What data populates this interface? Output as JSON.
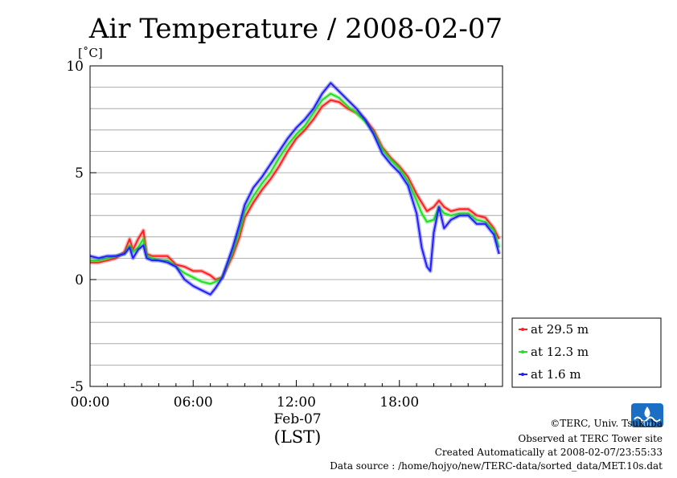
{
  "chart_data": {
    "type": "line",
    "title": "Air Temperature / 2008-02-07",
    "ylabel": "[˚C]",
    "xlabel": "Feb-07",
    "xlabel2": "(LST)",
    "x_unit": "hour",
    "xlim": [
      0,
      24
    ],
    "ylim": [
      -5,
      10
    ],
    "y_ticks": [
      -5,
      0,
      5,
      10
    ],
    "x_ticks": [
      {
        "v": 0,
        "label": "00:00"
      },
      {
        "v": 6,
        "label": "06:00"
      },
      {
        "v": 12,
        "label": "12:00"
      },
      {
        "v": 18,
        "label": "18:00"
      }
    ],
    "grid": true,
    "legend_position": "right-bottom",
    "series": [
      {
        "name": "at 29.5 m",
        "color": "#ff2020",
        "points": [
          [
            0,
            0.8
          ],
          [
            0.5,
            0.8
          ],
          [
            1,
            0.9
          ],
          [
            1.5,
            1.0
          ],
          [
            2,
            1.3
          ],
          [
            2.3,
            1.9
          ],
          [
            2.5,
            1.4
          ],
          [
            2.8,
            1.9
          ],
          [
            3.1,
            2.3
          ],
          [
            3.3,
            1.2
          ],
          [
            3.6,
            1.1
          ],
          [
            4,
            1.1
          ],
          [
            4.5,
            1.1
          ],
          [
            5,
            0.7
          ],
          [
            5.5,
            0.6
          ],
          [
            6,
            0.4
          ],
          [
            6.5,
            0.4
          ],
          [
            7,
            0.2
          ],
          [
            7.3,
            0.0
          ],
          [
            7.7,
            0.1
          ],
          [
            8,
            0.6
          ],
          [
            8.3,
            1.1
          ],
          [
            8.7,
            2.0
          ],
          [
            9,
            2.9
          ],
          [
            9.5,
            3.6
          ],
          [
            10,
            4.2
          ],
          [
            10.5,
            4.7
          ],
          [
            11,
            5.3
          ],
          [
            11.5,
            6.0
          ],
          [
            12,
            6.6
          ],
          [
            12.5,
            7.0
          ],
          [
            13,
            7.5
          ],
          [
            13.5,
            8.1
          ],
          [
            14,
            8.4
          ],
          [
            14.5,
            8.3
          ],
          [
            15,
            8.0
          ],
          [
            15.5,
            7.8
          ],
          [
            16,
            7.5
          ],
          [
            16.5,
            7.0
          ],
          [
            17,
            6.2
          ],
          [
            17.5,
            5.7
          ],
          [
            18,
            5.3
          ],
          [
            18.5,
            4.8
          ],
          [
            19,
            4.0
          ],
          [
            19.3,
            3.6
          ],
          [
            19.6,
            3.2
          ],
          [
            20,
            3.4
          ],
          [
            20.3,
            3.7
          ],
          [
            20.6,
            3.4
          ],
          [
            21,
            3.2
          ],
          [
            21.5,
            3.3
          ],
          [
            22,
            3.3
          ],
          [
            22.5,
            3.0
          ],
          [
            23,
            2.9
          ],
          [
            23.5,
            2.4
          ],
          [
            23.8,
            1.9
          ]
        ]
      },
      {
        "name": "at 12.3 m",
        "color": "#20e020",
        "points": [
          [
            0,
            0.9
          ],
          [
            0.5,
            0.9
          ],
          [
            1,
            1.0
          ],
          [
            1.5,
            1.1
          ],
          [
            2,
            1.2
          ],
          [
            2.3,
            1.6
          ],
          [
            2.5,
            1.3
          ],
          [
            2.8,
            1.5
          ],
          [
            3.1,
            1.9
          ],
          [
            3.3,
            1.1
          ],
          [
            3.6,
            1.0
          ],
          [
            4,
            0.9
          ],
          [
            4.5,
            0.9
          ],
          [
            5,
            0.6
          ],
          [
            5.5,
            0.3
          ],
          [
            6,
            0.1
          ],
          [
            6.5,
            -0.1
          ],
          [
            7,
            -0.2
          ],
          [
            7.3,
            -0.1
          ],
          [
            7.7,
            0.1
          ],
          [
            8,
            0.7
          ],
          [
            8.3,
            1.3
          ],
          [
            8.7,
            2.3
          ],
          [
            9,
            3.2
          ],
          [
            9.5,
            3.9
          ],
          [
            10,
            4.5
          ],
          [
            10.5,
            5.0
          ],
          [
            11,
            5.7
          ],
          [
            11.5,
            6.3
          ],
          [
            12,
            6.8
          ],
          [
            12.5,
            7.2
          ],
          [
            13,
            7.8
          ],
          [
            13.5,
            8.4
          ],
          [
            14,
            8.7
          ],
          [
            14.5,
            8.5
          ],
          [
            15,
            8.1
          ],
          [
            15.5,
            7.8
          ],
          [
            16,
            7.4
          ],
          [
            16.5,
            6.9
          ],
          [
            17,
            6.1
          ],
          [
            17.5,
            5.6
          ],
          [
            18,
            5.2
          ],
          [
            18.5,
            4.6
          ],
          [
            19,
            3.7
          ],
          [
            19.3,
            3.1
          ],
          [
            19.6,
            2.7
          ],
          [
            20,
            2.8
          ],
          [
            20.3,
            3.4
          ],
          [
            20.6,
            3.1
          ],
          [
            21,
            3.0
          ],
          [
            21.5,
            3.1
          ],
          [
            22,
            3.1
          ],
          [
            22.5,
            2.8
          ],
          [
            23,
            2.7
          ],
          [
            23.5,
            2.3
          ],
          [
            23.8,
            1.5
          ]
        ]
      },
      {
        "name": "at 1.6 m",
        "color": "#2020ff",
        "points": [
          [
            0,
            1.1
          ],
          [
            0.5,
            1.0
          ],
          [
            1,
            1.1
          ],
          [
            1.5,
            1.1
          ],
          [
            2,
            1.2
          ],
          [
            2.3,
            1.5
          ],
          [
            2.5,
            1.0
          ],
          [
            2.8,
            1.4
          ],
          [
            3.1,
            1.6
          ],
          [
            3.3,
            1.0
          ],
          [
            3.6,
            0.9
          ],
          [
            4,
            0.9
          ],
          [
            4.5,
            0.8
          ],
          [
            5,
            0.6
          ],
          [
            5.5,
            0.0
          ],
          [
            6,
            -0.3
          ],
          [
            6.5,
            -0.5
          ],
          [
            7,
            -0.7
          ],
          [
            7.3,
            -0.4
          ],
          [
            7.7,
            0.1
          ],
          [
            8,
            0.8
          ],
          [
            8.3,
            1.5
          ],
          [
            8.7,
            2.6
          ],
          [
            9,
            3.5
          ],
          [
            9.5,
            4.3
          ],
          [
            10,
            4.8
          ],
          [
            10.5,
            5.4
          ],
          [
            11,
            6.0
          ],
          [
            11.5,
            6.6
          ],
          [
            12,
            7.1
          ],
          [
            12.5,
            7.5
          ],
          [
            13,
            8.0
          ],
          [
            13.5,
            8.7
          ],
          [
            14,
            9.2
          ],
          [
            14.5,
            8.8
          ],
          [
            15,
            8.4
          ],
          [
            15.5,
            8.0
          ],
          [
            16,
            7.5
          ],
          [
            16.5,
            6.8
          ],
          [
            17,
            5.9
          ],
          [
            17.5,
            5.4
          ],
          [
            18,
            5.0
          ],
          [
            18.5,
            4.4
          ],
          [
            19,
            3.1
          ],
          [
            19.3,
            1.5
          ],
          [
            19.6,
            0.6
          ],
          [
            19.8,
            0.4
          ],
          [
            20,
            2.2
          ],
          [
            20.3,
            3.4
          ],
          [
            20.6,
            2.4
          ],
          [
            21,
            2.8
          ],
          [
            21.5,
            3.0
          ],
          [
            22,
            3.0
          ],
          [
            22.5,
            2.6
          ],
          [
            23,
            2.6
          ],
          [
            23.5,
            2.1
          ],
          [
            23.8,
            1.2
          ]
        ]
      }
    ]
  },
  "footer": {
    "copyright": "©TERC, Univ. Tsukuba",
    "observed": "Observed at TERC Tower site",
    "created": "Created Automatically at 2008-02-07/23:55:33",
    "source": "Data source : /home/hojyo/new/TERC-data/sorted_data/MET.10s.dat",
    "logo_text": "TERC"
  }
}
